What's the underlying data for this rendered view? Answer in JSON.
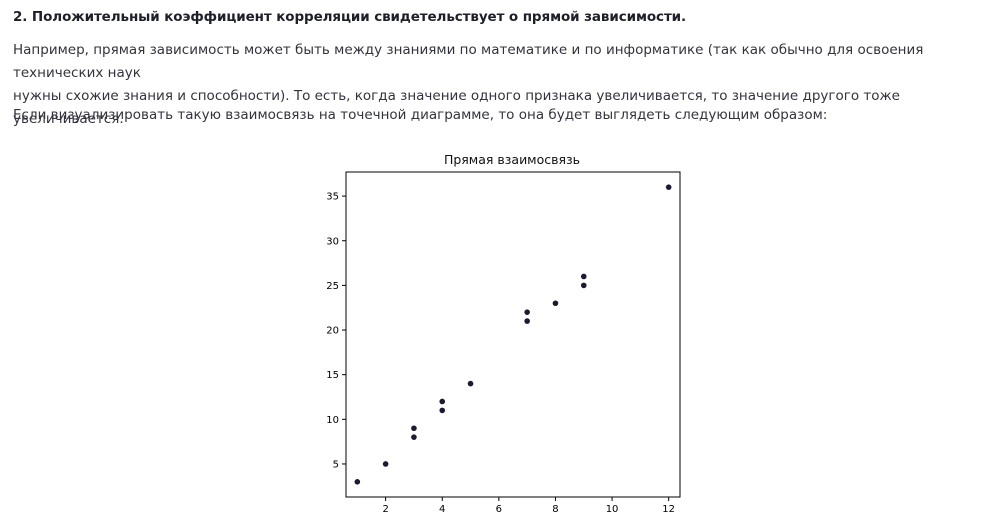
{
  "section": {
    "heading": "2. Положительный коэффициент корреляции свидетельствует о прямой зависимости.",
    "paragraph_1_line_1": "Например, прямая зависимость может быть между знаниями по математике и по информатике (так как обычно для освоения технических наук",
    "paragraph_1_line_2": "нужны схожие знания и способности). То есть, когда значение одного признака увеличивается, то значение другого тоже увеличивается.",
    "paragraph_2": "Если визуализировать такую взаимосвязь на точечной диаграмме, то она будет выглядеть следующим образом:"
  },
  "chart_data": {
    "type": "scatter",
    "title": "Прямая взаимосвязь",
    "xlabel": "",
    "ylabel": "",
    "xlim": [
      0.6,
      12.4
    ],
    "ylim": [
      1.3,
      37.7
    ],
    "x_ticks": [
      2,
      4,
      6,
      8,
      10,
      12
    ],
    "y_ticks": [
      5,
      10,
      15,
      20,
      25,
      30,
      35
    ],
    "grid": false,
    "point_color": "#1a1a33",
    "points": [
      {
        "x": 1,
        "y": 3
      },
      {
        "x": 2,
        "y": 5
      },
      {
        "x": 3,
        "y": 8
      },
      {
        "x": 3,
        "y": 9
      },
      {
        "x": 4,
        "y": 11
      },
      {
        "x": 4,
        "y": 12
      },
      {
        "x": 5,
        "y": 14
      },
      {
        "x": 7,
        "y": 21
      },
      {
        "x": 7,
        "y": 22
      },
      {
        "x": 8,
        "y": 23
      },
      {
        "x": 9,
        "y": 25
      },
      {
        "x": 9,
        "y": 26
      },
      {
        "x": 12,
        "y": 36
      }
    ]
  }
}
